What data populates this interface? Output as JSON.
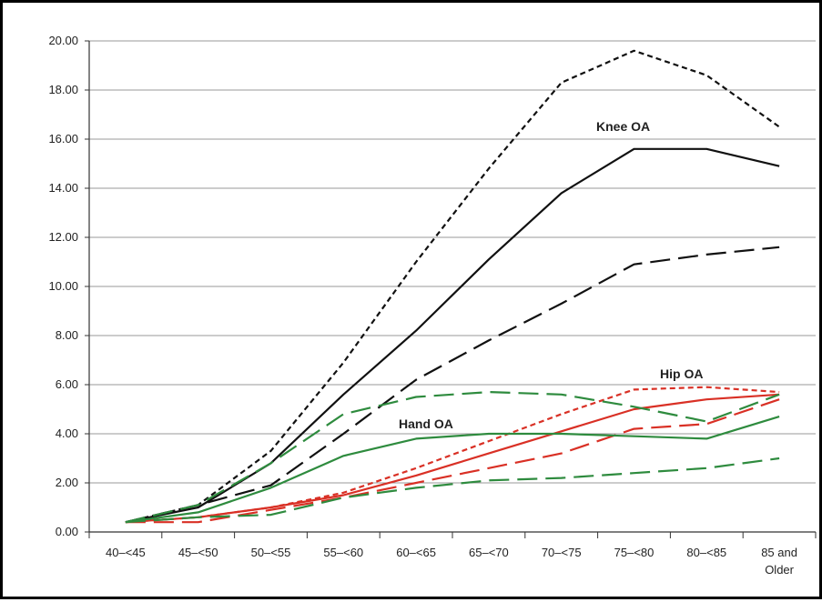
{
  "chart_data": {
    "type": "line",
    "title": "",
    "xlabel": "",
    "ylabel": "",
    "categories": [
      "40–<45",
      "45–<50",
      "50–<55",
      "55–<60",
      "60–<65",
      "65–<70",
      "70–<75",
      "75–<80",
      "80–<85",
      "85 and Older"
    ],
    "ylim": [
      0,
      20
    ],
    "yticks": [
      "0.00",
      "2.00",
      "4.00",
      "6.00",
      "8.00",
      "10.00",
      "12.00",
      "14.00",
      "16.00",
      "18.00",
      "20.00"
    ],
    "grid": "horizontal",
    "legend": "none",
    "annotations": [
      {
        "text": "Knee OA",
        "series_group": "knee"
      },
      {
        "text": "Hip OA",
        "series_group": "hip"
      },
      {
        "text": "Hand OA",
        "series_group": "hand"
      }
    ],
    "series": [
      {
        "group": "knee",
        "style": "dotted",
        "color": "#111111",
        "values": [
          0.4,
          1.1,
          3.3,
          6.9,
          11.0,
          14.8,
          18.3,
          19.6,
          18.6,
          16.5
        ]
      },
      {
        "group": "knee",
        "style": "solid",
        "color": "#111111",
        "values": [
          0.4,
          1.0,
          2.8,
          5.6,
          8.2,
          11.1,
          13.8,
          15.6,
          15.6,
          14.9
        ]
      },
      {
        "group": "knee",
        "style": "dashed",
        "color": "#111111",
        "values": [
          0.4,
          1.1,
          1.9,
          4.0,
          6.2,
          7.8,
          9.3,
          10.9,
          11.3,
          11.6
        ]
      },
      {
        "group": "hip",
        "style": "dotted",
        "color": "#d93025",
        "values": [
          0.4,
          0.6,
          1.0,
          1.6,
          2.6,
          3.7,
          4.8,
          5.8,
          5.9,
          5.7
        ]
      },
      {
        "group": "hip",
        "style": "solid",
        "color": "#d93025",
        "values": [
          0.4,
          0.6,
          1.0,
          1.5,
          2.3,
          3.2,
          4.1,
          5.0,
          5.4,
          5.6
        ]
      },
      {
        "group": "hip",
        "style": "dashed",
        "color": "#d93025",
        "values": [
          0.4,
          0.4,
          0.9,
          1.4,
          2.0,
          2.6,
          3.2,
          4.2,
          4.4,
          5.4
        ]
      },
      {
        "group": "hand",
        "style": "dashed",
        "color": "#2e8b3e",
        "values": [
          0.4,
          1.1,
          2.8,
          4.8,
          5.5,
          5.7,
          5.6,
          5.1,
          4.5,
          5.6
        ]
      },
      {
        "group": "hand",
        "style": "solid",
        "color": "#2e8b3e",
        "values": [
          0.4,
          0.8,
          1.8,
          3.1,
          3.8,
          4.0,
          4.0,
          3.9,
          3.8,
          4.7
        ]
      },
      {
        "group": "hand",
        "style": "dashed",
        "color": "#2e8b3e",
        "values": [
          0.4,
          0.6,
          0.7,
          1.4,
          1.8,
          2.1,
          2.2,
          2.4,
          2.6,
          3.0
        ]
      }
    ]
  }
}
